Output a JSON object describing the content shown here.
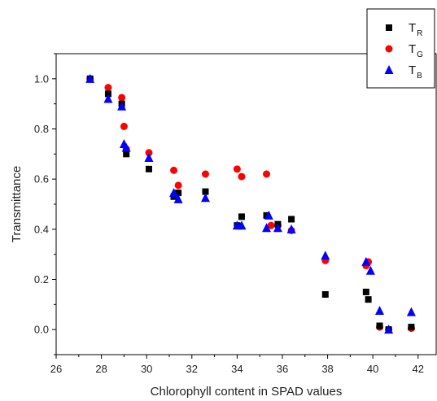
{
  "chart_data": {
    "type": "scatter",
    "xlabel": "Chlorophyll content in SPAD values",
    "ylabel": "Transmittance",
    "xlim": [
      26,
      42.8
    ],
    "ylim": [
      -0.1,
      1.1
    ],
    "x_ticks": [
      26,
      28,
      30,
      32,
      34,
      36,
      38,
      40,
      42
    ],
    "y_ticks": [
      0.0,
      0.2,
      0.4,
      0.6,
      0.8,
      1.0
    ],
    "x_tick_labels": [
      "26",
      "28",
      "30",
      "32",
      "34",
      "36",
      "38",
      "40",
      "42"
    ],
    "y_tick_labels": [
      "0.0",
      "0.2",
      "0.4",
      "0.6",
      "0.8",
      "1.0"
    ],
    "grid": false,
    "legend_position": "top-right",
    "series": [
      {
        "legend_main": "T",
        "legend_sub": "R",
        "marker": "square",
        "color": "#000000",
        "x": [
          27.5,
          28.3,
          28.9,
          29.1,
          30.1,
          31.2,
          31.4,
          32.6,
          34.0,
          34.2,
          35.3,
          35.8,
          36.4,
          37.9,
          39.7,
          39.8,
          40.3,
          40.7,
          41.7
        ],
        "y": [
          1.0,
          0.94,
          0.9,
          0.7,
          0.64,
          0.53,
          0.545,
          0.55,
          0.415,
          0.45,
          0.455,
          0.42,
          0.44,
          0.14,
          0.15,
          0.12,
          0.015,
          0.0,
          0.01
        ]
      },
      {
        "legend_main": "T",
        "legend_sub": "G",
        "marker": "circle",
        "color": "#ff0000",
        "x": [
          27.5,
          28.3,
          28.9,
          29.0,
          29.1,
          30.1,
          31.2,
          31.4,
          32.6,
          34.0,
          34.2,
          35.3,
          35.5,
          35.8,
          36.4,
          37.9,
          39.7,
          39.8,
          40.3,
          40.7,
          41.7
        ],
        "y": [
          1.0,
          0.965,
          0.925,
          0.81,
          0.72,
          0.705,
          0.635,
          0.575,
          0.62,
          0.64,
          0.61,
          0.62,
          0.415,
          0.415,
          0.395,
          0.275,
          0.255,
          0.27,
          0.01,
          0.0,
          0.005
        ]
      },
      {
        "legend_main": "T",
        "legend_sub": "B",
        "marker": "triangle",
        "color": "#0000ff",
        "x": [
          27.5,
          28.3,
          28.9,
          29.0,
          29.1,
          30.1,
          31.2,
          31.4,
          32.6,
          34.0,
          34.2,
          35.3,
          35.4,
          35.8,
          36.4,
          37.9,
          39.7,
          39.9,
          40.3,
          40.7,
          41.7
        ],
        "y": [
          1.0,
          0.92,
          0.89,
          0.74,
          0.725,
          0.685,
          0.545,
          0.52,
          0.525,
          0.415,
          0.415,
          0.405,
          0.455,
          0.405,
          0.4,
          0.295,
          0.27,
          0.235,
          0.075,
          0.0,
          0.07
        ]
      }
    ]
  }
}
